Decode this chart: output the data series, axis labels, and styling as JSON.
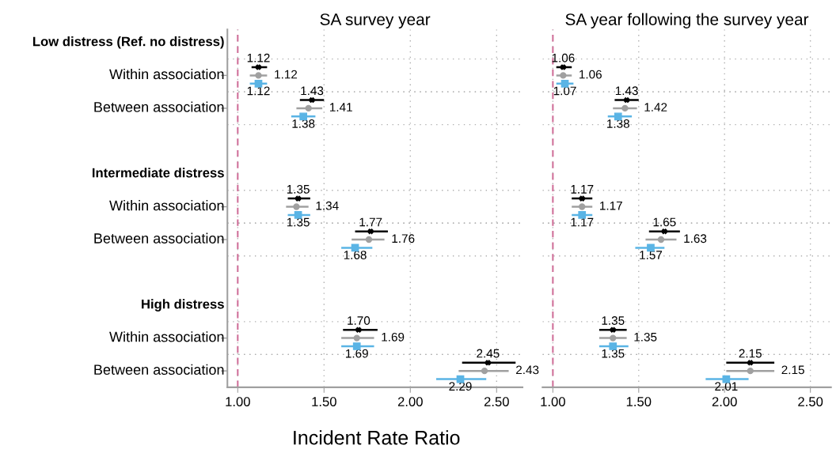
{
  "chart_data": [
    {
      "type": "scatter",
      "orientation": "horizontal",
      "title": "SA survey year",
      "xlabel": "Incident Rate Ratio",
      "categories": [
        "Low distress (Ref. no distress)",
        "Within association",
        "Between association",
        null,
        "Intermediate distress",
        "Within association",
        "Between association",
        null,
        "High distress",
        "Within association",
        "Between association"
      ],
      "series": [
        {
          "color": "#000000",
          "marker": "cross",
          "values": [
            null,
            1.12,
            1.43,
            null,
            null,
            1.35,
            1.77,
            null,
            null,
            1.7,
            2.45
          ],
          "value_labels": [
            null,
            "1.12",
            "1.43",
            null,
            null,
            "1.35",
            "1.77",
            null,
            null,
            "1.70",
            "2.45"
          ],
          "errors": [
            null,
            [
              1.08,
              1.17
            ],
            [
              1.36,
              1.5
            ],
            null,
            null,
            [
              1.29,
              1.42
            ],
            [
              1.68,
              1.87
            ],
            null,
            null,
            [
              1.61,
              1.81
            ],
            [
              2.3,
              2.61
            ]
          ]
        },
        {
          "color": "#a0a0a0",
          "marker": "circle",
          "values": [
            null,
            1.12,
            1.41,
            null,
            null,
            1.34,
            1.76,
            null,
            null,
            1.69,
            2.43
          ],
          "value_labels": [
            null,
            "1.12",
            "1.41",
            null,
            null,
            "1.34",
            "1.76",
            null,
            null,
            "1.69",
            "2.43"
          ],
          "errors": [
            null,
            [
              1.07,
              1.17
            ],
            [
              1.34,
              1.49
            ],
            null,
            null,
            [
              1.28,
              1.41
            ],
            [
              1.66,
              1.85
            ],
            null,
            null,
            [
              1.6,
              1.79
            ],
            [
              2.28,
              2.57
            ]
          ]
        },
        {
          "color": "#5ab4e5",
          "marker": "square",
          "values": [
            null,
            1.12,
            1.38,
            null,
            null,
            1.35,
            1.68,
            null,
            null,
            1.69,
            2.29
          ],
          "value_labels": [
            null,
            "1.12",
            "1.38",
            null,
            null,
            "1.35",
            "1.68",
            null,
            null,
            "1.69",
            "2.29"
          ],
          "errors": [
            null,
            [
              1.07,
              1.17
            ],
            [
              1.31,
              1.45
            ],
            null,
            null,
            [
              1.29,
              1.42
            ],
            [
              1.6,
              1.78
            ],
            null,
            null,
            [
              1.6,
              1.79
            ],
            [
              2.15,
              2.44
            ]
          ]
        }
      ],
      "xlim": [
        0.94,
        2.65
      ],
      "xticks": [
        {
          "value": 1,
          "label": "1.00"
        },
        {
          "value": 1.5,
          "label": "1.50"
        },
        {
          "value": 2,
          "label": "2.00"
        },
        {
          "value": 2.5,
          "label": "2.50"
        }
      ],
      "ref_lines": [
        {
          "axis": "x",
          "value": 1,
          "color": "#d0709a",
          "line_style": "dashed"
        }
      ],
      "grid": true
    },
    {
      "type": "scatter",
      "orientation": "horizontal",
      "title": "SA year following the survey year",
      "categories": [
        null,
        null,
        null,
        null,
        null,
        null,
        null,
        null,
        null,
        null,
        null
      ],
      "series": [
        {
          "color": "#000000",
          "marker": "cross",
          "values": [
            null,
            1.06,
            1.43,
            null,
            null,
            1.17,
            1.65,
            null,
            null,
            1.35,
            2.15
          ],
          "value_labels": [
            null,
            "1.06",
            "1.43",
            null,
            null,
            "1.17",
            "1.65",
            null,
            null,
            "1.35",
            "2.15"
          ],
          "errors": [
            null,
            [
              1.02,
              1.11
            ],
            [
              1.36,
              1.5
            ],
            null,
            null,
            [
              1.11,
              1.23
            ],
            [
              1.56,
              1.74
            ],
            null,
            null,
            [
              1.27,
              1.43
            ],
            [
              2.01,
              2.29
            ]
          ]
        },
        {
          "color": "#a0a0a0",
          "marker": "circle",
          "values": [
            null,
            1.06,
            1.42,
            null,
            null,
            1.17,
            1.63,
            null,
            null,
            1.35,
            2.15
          ],
          "value_labels": [
            null,
            "1.06",
            "1.42",
            null,
            null,
            "1.17",
            "1.63",
            null,
            null,
            "1.35",
            "2.15"
          ],
          "errors": [
            null,
            [
              1.02,
              1.11
            ],
            [
              1.35,
              1.49
            ],
            null,
            null,
            [
              1.11,
              1.23
            ],
            [
              1.54,
              1.72
            ],
            null,
            null,
            [
              1.27,
              1.43
            ],
            [
              2.01,
              2.29
            ]
          ]
        },
        {
          "color": "#5ab4e5",
          "marker": "square",
          "values": [
            null,
            1.07,
            1.38,
            null,
            null,
            1.17,
            1.57,
            null,
            null,
            1.35,
            2.01
          ],
          "value_labels": [
            null,
            "1.07",
            "1.38",
            null,
            null,
            "1.17",
            "1.57",
            null,
            null,
            "1.35",
            "2.01"
          ],
          "errors": [
            null,
            [
              1.02,
              1.12
            ],
            [
              1.32,
              1.46
            ],
            null,
            null,
            [
              1.11,
              1.23
            ],
            [
              1.48,
              1.65
            ],
            null,
            null,
            [
              1.27,
              1.44
            ],
            [
              1.89,
              2.14
            ]
          ]
        }
      ],
      "xlim": [
        0.94,
        2.62
      ],
      "xticks": [
        {
          "value": 1,
          "label": "1.00"
        },
        {
          "value": 1.5,
          "label": "1.50"
        },
        {
          "value": 2,
          "label": "2.00"
        },
        {
          "value": 2.5,
          "label": "2.50"
        }
      ],
      "ref_lines": [
        {
          "axis": "x",
          "value": 1,
          "color": "#d0709a",
          "line_style": "dashed"
        }
      ],
      "grid": true,
      "tick_labels": "x"
    }
  ]
}
